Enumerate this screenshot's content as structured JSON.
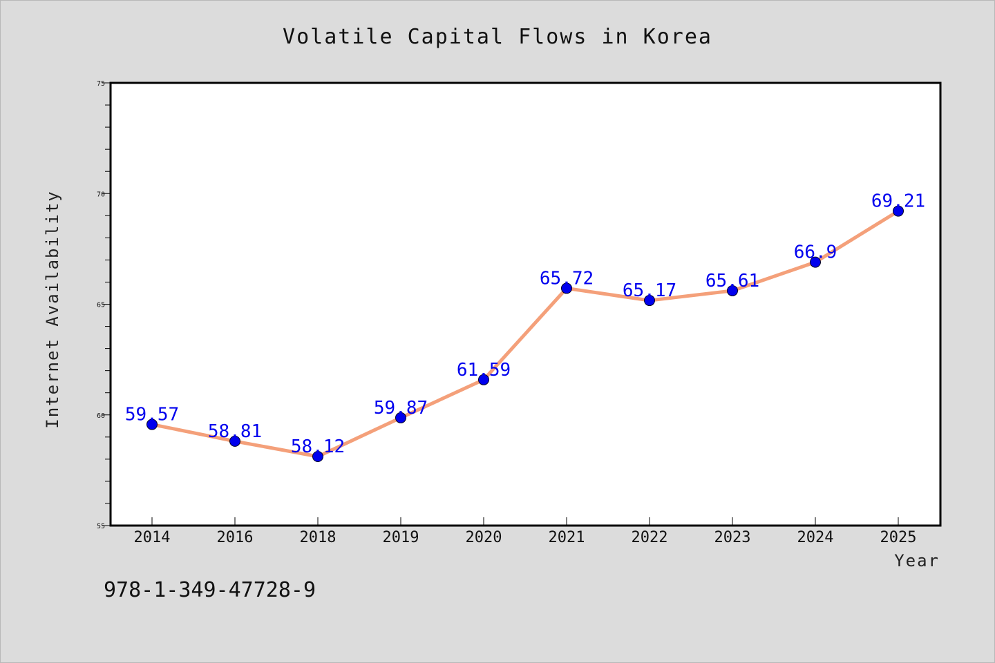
{
  "chart_data": {
    "type": "line",
    "title": "Volatile Capital Flows in Korea",
    "xlabel": "Year",
    "ylabel": "Internet Availability",
    "categories": [
      "2014",
      "2016",
      "2018",
      "2019",
      "2020",
      "2021",
      "2022",
      "2023",
      "2024",
      "2025"
    ],
    "values": [
      59.57,
      58.81,
      58.12,
      59.87,
      61.59,
      65.72,
      65.17,
      65.61,
      66.9,
      69.21
    ],
    "data_labels": [
      "59.57",
      "58.81",
      "58.12",
      "59.87",
      "61.59",
      "65.72",
      "65.17",
      "65.61",
      "66.9",
      "69.21"
    ],
    "ylim": [
      55,
      75
    ],
    "yticks": [
      "55",
      "60",
      "65",
      "70",
      "75"
    ],
    "grid": false,
    "line_color": "#f4a07a",
    "marker_color": "#0000ee",
    "label_color": "#0000ee"
  },
  "annotation": {
    "isbn": "978-1-349-47728-9"
  }
}
